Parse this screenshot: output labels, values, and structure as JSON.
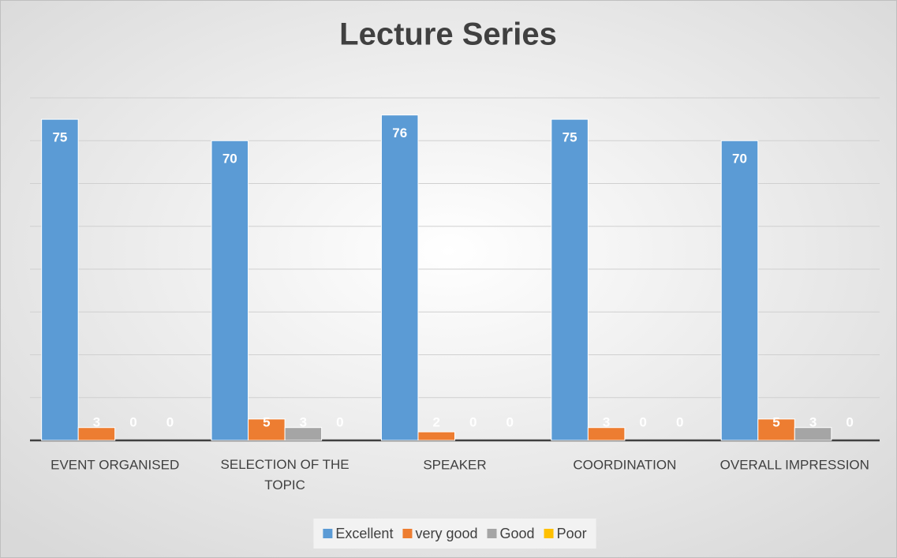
{
  "chart_data": {
    "type": "bar",
    "title": "Lecture Series",
    "categories": [
      "EVENT ORGANISED",
      "SELECTION OF THE TOPIC",
      "SPEAKER",
      "COORDINATION",
      "OVERALL IMPRESSION"
    ],
    "series": [
      {
        "name": "Excellent",
        "color": "#5b9bd5",
        "values": [
          75,
          70,
          76,
          75,
          70
        ]
      },
      {
        "name": "very good",
        "color": "#ed7d31",
        "values": [
          3,
          5,
          2,
          3,
          5
        ]
      },
      {
        "name": "Good",
        "color": "#a5a5a5",
        "values": [
          0,
          3,
          0,
          0,
          3
        ]
      },
      {
        "name": "Poor",
        "color": "#ffc000",
        "values": [
          0,
          0,
          0,
          0,
          0
        ]
      }
    ],
    "ylim": [
      0,
      80
    ],
    "yticks": [
      0,
      10,
      20,
      30,
      40,
      50,
      60,
      70,
      80
    ],
    "grid": true,
    "legend": "bottom",
    "data_labels": true
  }
}
